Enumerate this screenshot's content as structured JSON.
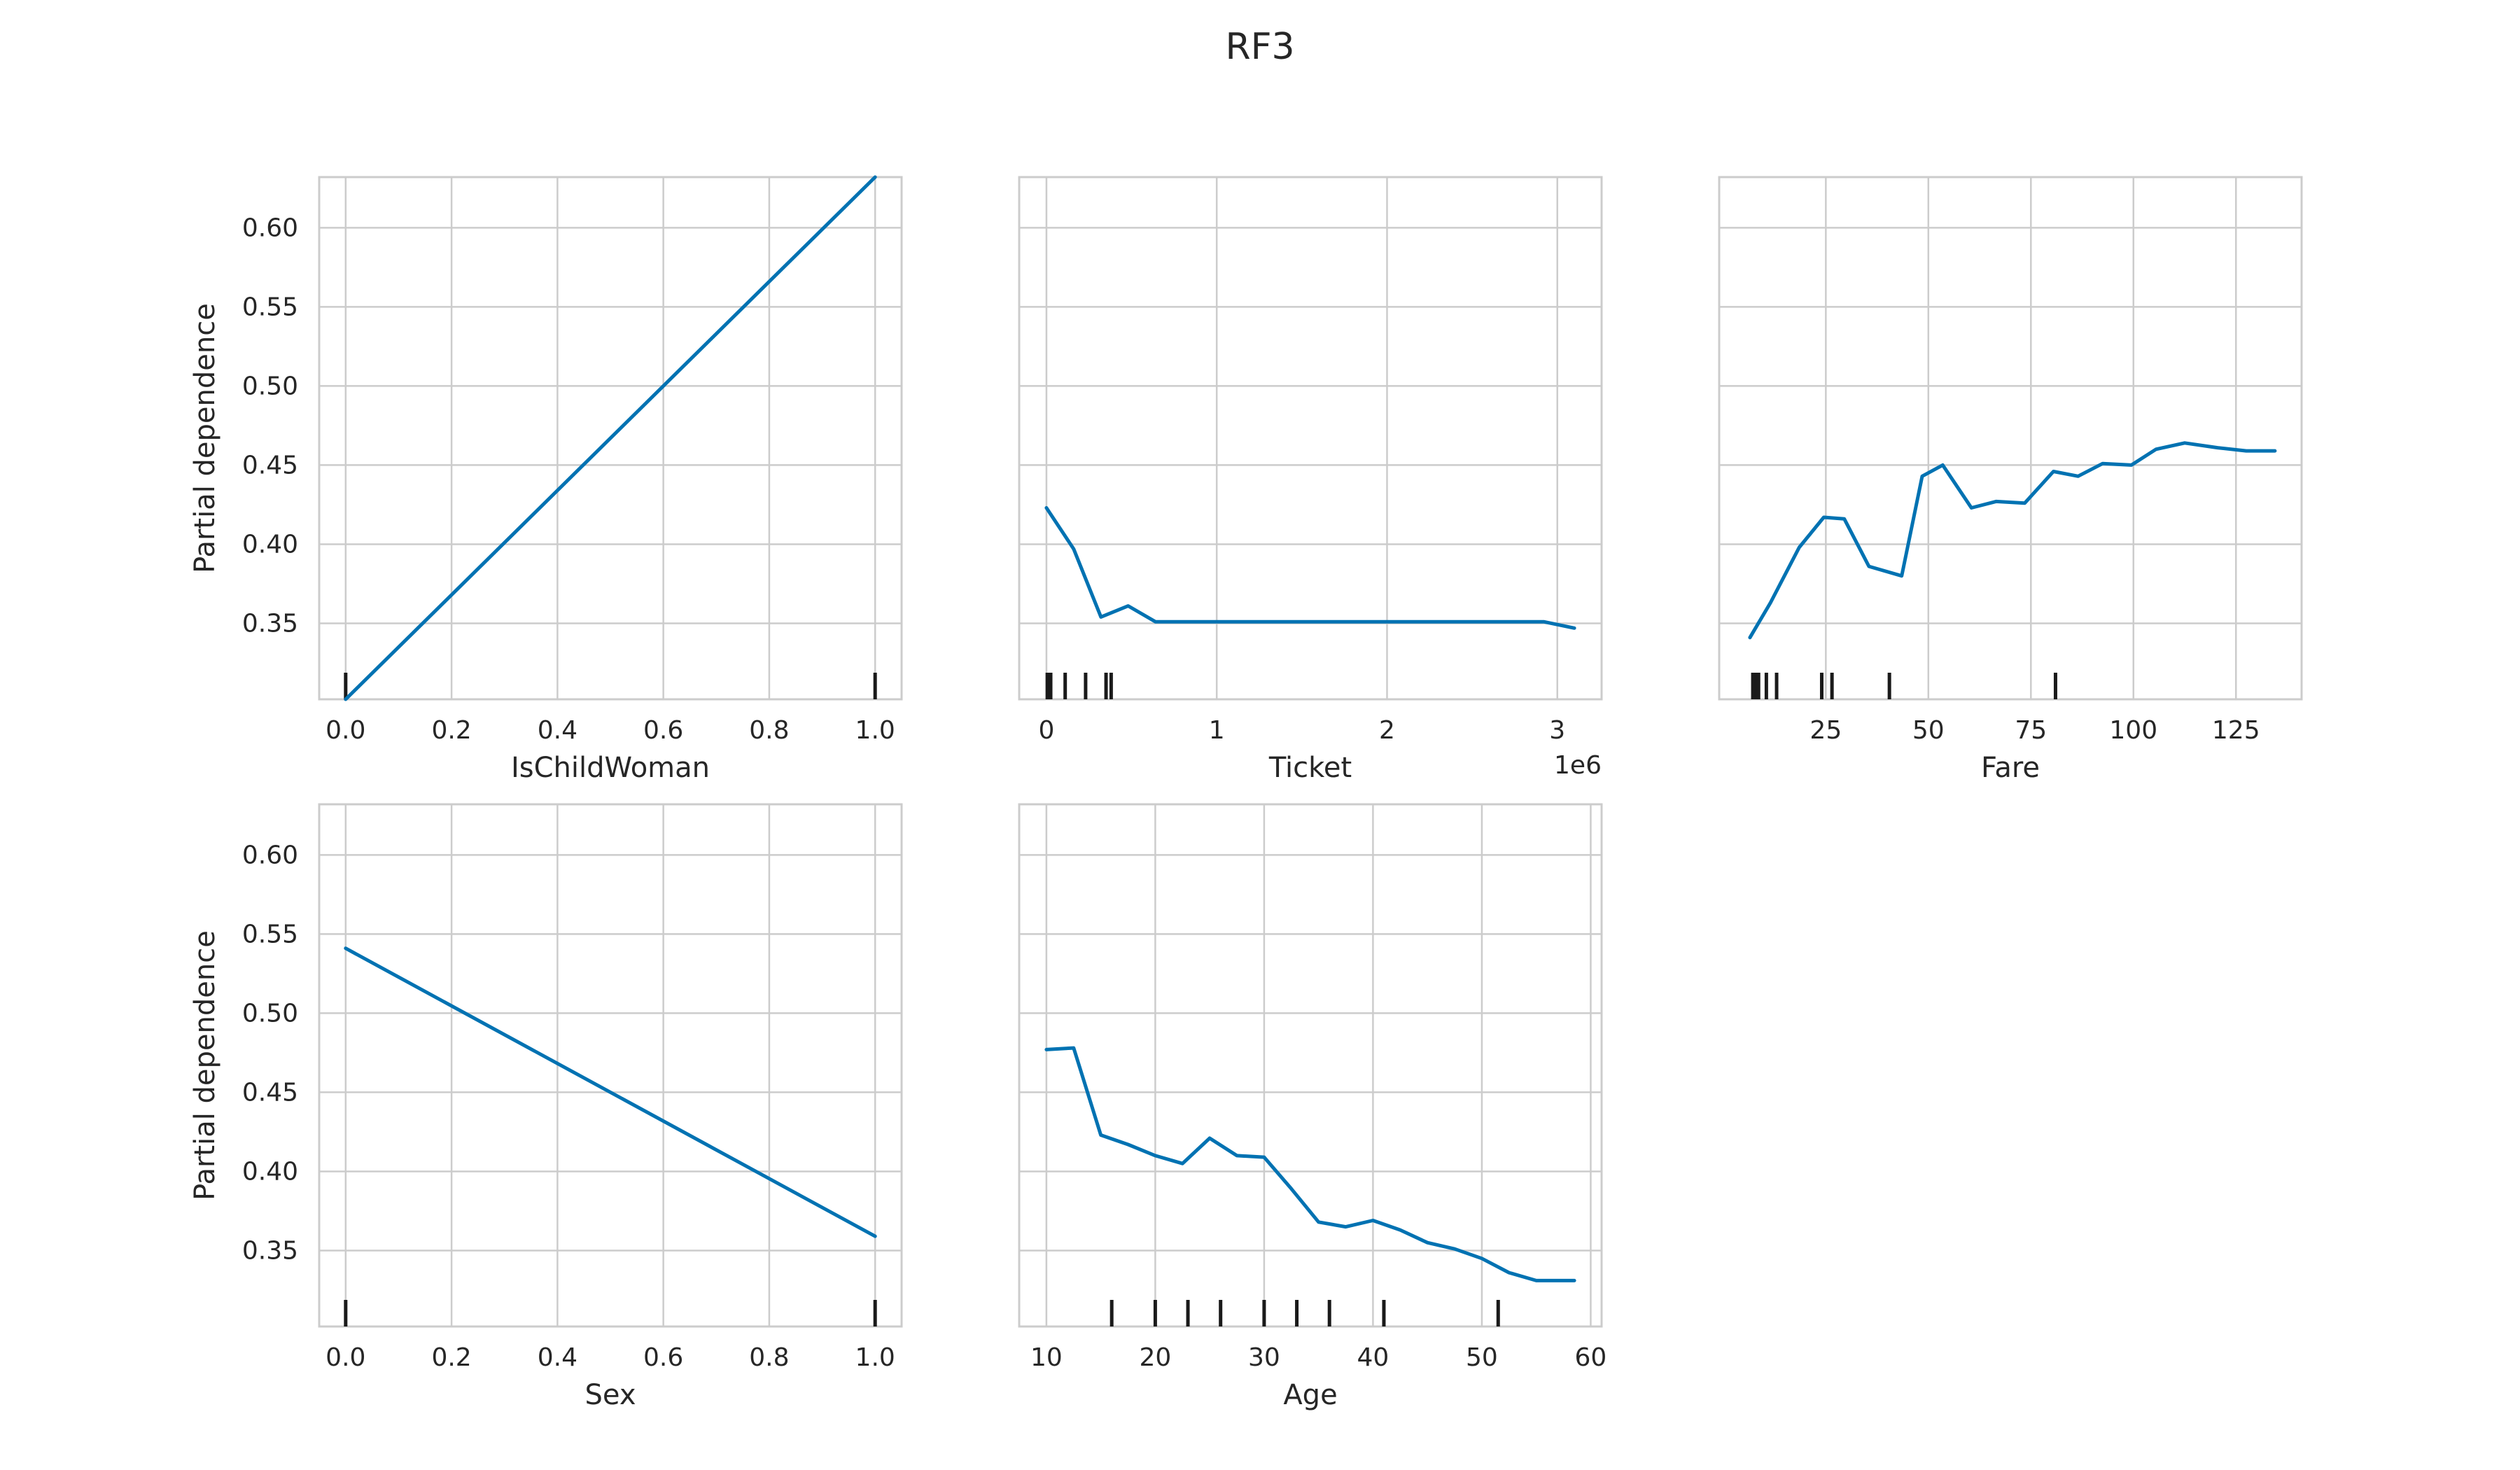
{
  "figure": {
    "title": "RF3"
  },
  "chart_data": [
    {
      "type": "line",
      "xlabel": "IsChildWoman",
      "ylabel": "Partial dependence",
      "offset_text": "",
      "xlim": [
        -0.05,
        1.05
      ],
      "ylim": [
        0.302,
        0.632
      ],
      "xticks": [
        0.0,
        0.2,
        0.4,
        0.6,
        0.8,
        1.0
      ],
      "xtick_labels": [
        "0.0",
        "0.2",
        "0.4",
        "0.6",
        "0.8",
        "1.0"
      ],
      "yticks": [
        0.35,
        0.4,
        0.45,
        0.5,
        0.55,
        0.6
      ],
      "ytick_labels": [
        "0.35",
        "0.40",
        "0.45",
        "0.50",
        "0.55",
        "0.60"
      ],
      "show_yticklabels": true,
      "series": [
        {
          "x": [
            0.0,
            1.0
          ],
          "y": [
            0.302,
            0.632
          ]
        }
      ],
      "deciles": [
        0.0,
        1.0
      ],
      "grid": true
    },
    {
      "type": "line",
      "xlabel": "Ticket",
      "ylabel": "",
      "offset_text": "1e6",
      "xlim": [
        -0.16,
        3.26
      ],
      "ylim": [
        0.302,
        0.632
      ],
      "xticks": [
        0,
        1,
        2,
        3
      ],
      "xtick_labels": [
        "0",
        "1",
        "2",
        "3"
      ],
      "yticks": [
        0.35,
        0.4,
        0.45,
        0.5,
        0.55,
        0.6
      ],
      "ytick_labels": [],
      "show_yticklabels": false,
      "series": [
        {
          "x": [
            0.0,
            0.16,
            0.32,
            0.48,
            0.64,
            0.96,
            1.28,
            1.6,
            1.92,
            2.24,
            2.56,
            2.92,
            3.1
          ],
          "y": [
            0.423,
            0.397,
            0.354,
            0.361,
            0.351,
            0.351,
            0.351,
            0.351,
            0.351,
            0.351,
            0.351,
            0.351,
            0.347
          ]
        }
      ],
      "deciles": [
        0.005,
        0.025,
        0.11,
        0.23,
        0.35,
        0.38
      ],
      "grid": true
    },
    {
      "type": "line",
      "xlabel": "Fare",
      "ylabel": "",
      "offset_text": "",
      "xlim": [
        -1.0,
        141.0
      ],
      "ylim": [
        0.302,
        0.632
      ],
      "xticks": [
        25,
        50,
        75,
        100,
        125
      ],
      "xtick_labels": [
        "25",
        "50",
        "75",
        "100",
        "125"
      ],
      "yticks": [
        0.35,
        0.4,
        0.45,
        0.5,
        0.55,
        0.6
      ],
      "ytick_labels": [],
      "show_yticklabels": false,
      "series": [
        {
          "x": [
            6.5,
            11.5,
            18.5,
            24.5,
            29.5,
            35.5,
            43.5,
            48.5,
            53.5,
            60.5,
            66.5,
            73.5,
            80.5,
            86.5,
            92.5,
            99.5,
            105.5,
            112.5,
            120.5,
            127.5,
            134.5
          ],
          "y": [
            0.341,
            0.363,
            0.398,
            0.417,
            0.416,
            0.386,
            0.38,
            0.443,
            0.45,
            0.423,
            0.427,
            0.426,
            0.446,
            0.443,
            0.451,
            0.45,
            0.46,
            0.464,
            0.461,
            0.459,
            0.459
          ]
        }
      ],
      "deciles": [
        7.2,
        7.9,
        8.6,
        10.5,
        13.0,
        24.0,
        26.5,
        40.5,
        81.0
      ],
      "grid": true
    },
    {
      "type": "line",
      "xlabel": "Sex",
      "ylabel": "Partial dependence",
      "offset_text": "",
      "xlim": [
        -0.05,
        1.05
      ],
      "ylim": [
        0.302,
        0.632
      ],
      "xticks": [
        0.0,
        0.2,
        0.4,
        0.6,
        0.8,
        1.0
      ],
      "xtick_labels": [
        "0.0",
        "0.2",
        "0.4",
        "0.6",
        "0.8",
        "1.0"
      ],
      "yticks": [
        0.35,
        0.4,
        0.45,
        0.5,
        0.55,
        0.6
      ],
      "ytick_labels": [
        "0.35",
        "0.40",
        "0.45",
        "0.50",
        "0.55",
        "0.60"
      ],
      "show_yticklabels": true,
      "series": [
        {
          "x": [
            0.0,
            1.0
          ],
          "y": [
            0.541,
            0.359
          ]
        }
      ],
      "deciles": [
        0.0,
        1.0
      ],
      "grid": true
    },
    {
      "type": "line",
      "xlabel": "Age",
      "ylabel": "",
      "offset_text": "",
      "xlim": [
        7.5,
        61.0
      ],
      "ylim": [
        0.302,
        0.632
      ],
      "xticks": [
        10,
        20,
        30,
        40,
        50,
        60
      ],
      "xtick_labels": [
        "10",
        "20",
        "30",
        "40",
        "50",
        "60"
      ],
      "yticks": [
        0.35,
        0.4,
        0.45,
        0.5,
        0.55,
        0.6
      ],
      "ytick_labels": [],
      "show_yticklabels": false,
      "series": [
        {
          "x": [
            10.0,
            12.5,
            15.0,
            17.5,
            20.0,
            22.5,
            25.0,
            27.5,
            30.0,
            32.5,
            35.0,
            37.5,
            40.0,
            42.5,
            45.0,
            47.5,
            50.0,
            52.5,
            55.0,
            57.5,
            58.5
          ],
          "y": [
            0.477,
            0.478,
            0.423,
            0.417,
            0.41,
            0.405,
            0.421,
            0.41,
            0.409,
            0.389,
            0.368,
            0.365,
            0.369,
            0.363,
            0.355,
            0.351,
            0.345,
            0.336,
            0.331,
            0.331,
            0.331
          ]
        }
      ],
      "deciles": [
        16.0,
        20.0,
        23.0,
        26.0,
        30.0,
        33.0,
        36.0,
        41.0,
        51.5
      ],
      "grid": true
    }
  ]
}
